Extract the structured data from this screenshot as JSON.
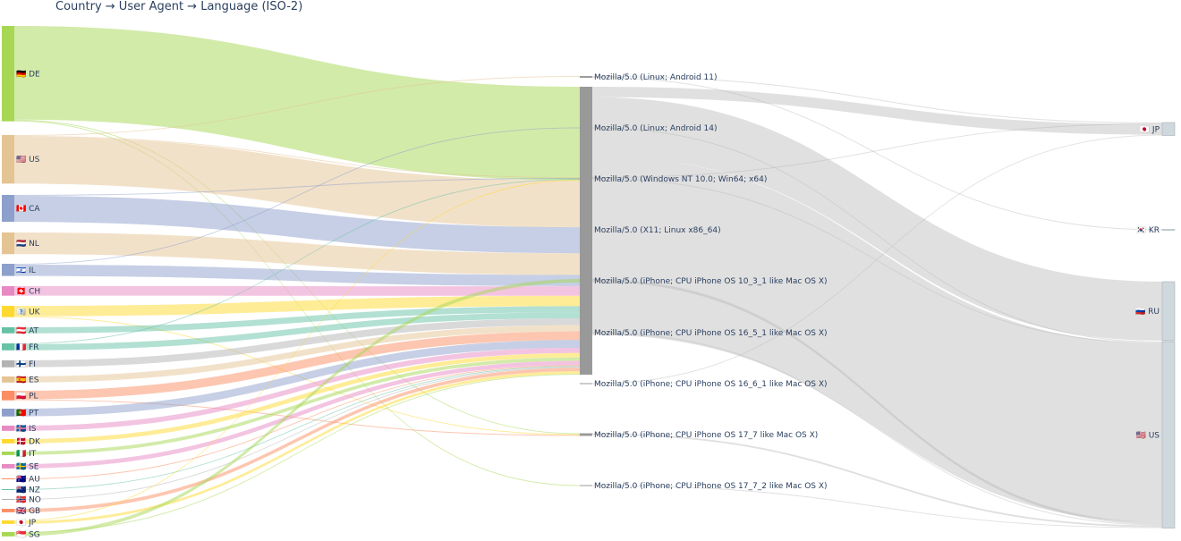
{
  "chart_data": {
    "type": "sankey",
    "title": "Country → User Agent → Language (ISO-2)",
    "nodes": [
      {
        "label": "🇩🇪 DE",
        "color": "#a6d854"
      },
      {
        "label": "🇺🇸 US",
        "color": "#e5c494"
      },
      {
        "label": "🇨🇦 CA",
        "color": "#8da0cb"
      },
      {
        "label": "🇳🇱 NL",
        "color": "#e5c494"
      },
      {
        "label": "🇮🇱 IL",
        "color": "#8da0cb"
      },
      {
        "label": "🇨🇭 CH",
        "color": "#e78ac3"
      },
      {
        "label": "🇺🇰 UK",
        "color": "#ffd92f"
      },
      {
        "label": "🇦🇹 AT",
        "color": "#66c2a5"
      },
      {
        "label": "🇫🇷 FR",
        "color": "#66c2a5"
      },
      {
        "label": "🇫🇮 FI",
        "color": "#b3b3b3"
      },
      {
        "label": "🇪🇸 ES",
        "color": "#e5c494"
      },
      {
        "label": "🇵🇱 PL",
        "color": "#fc8d62"
      },
      {
        "label": "🇵🇹 PT",
        "color": "#8da0cb"
      },
      {
        "label": "🇮🇸 IS",
        "color": "#e78ac3"
      },
      {
        "label": "🇩🇰 DK",
        "color": "#ffd92f"
      },
      {
        "label": "🇮🇹 IT",
        "color": "#a6d854"
      },
      {
        "label": "🇸🇪 SE",
        "color": "#e78ac3"
      },
      {
        "label": "🇦🇺 AU",
        "color": "#fc8d62"
      },
      {
        "label": "🇳🇿 NZ",
        "color": "#66c2a5"
      },
      {
        "label": "🇳🇴 NO",
        "color": "#b3b3b3"
      },
      {
        "label": "🇬🇧 GB",
        "color": "#fc8d62"
      },
      {
        "label": "🇯🇵 JP",
        "color": "#ffd92f"
      },
      {
        "label": "🇸🇬 SG",
        "color": "#a6d854"
      },
      {
        "label": "Mozilla/5.0 (Linux; Android 11)",
        "color": "#999999"
      },
      {
        "label": "Mozilla/5.0 (Linux; Android 14)",
        "color": "#999999"
      },
      {
        "label": "Mozilla/5.0 (Windows NT 10.0; Win64; x64)",
        "color": "#999999"
      },
      {
        "label": "Mozilla/5.0 (X11; Linux x86_64)",
        "color": "#999999"
      },
      {
        "label": "Mozilla/5.0 (iPhone; CPU iPhone OS 10_3_1 like Mac OS X)",
        "color": "#999999"
      },
      {
        "label": "Mozilla/5.0 (iPhone; CPU iPhone OS 16_5_1 like Mac OS X)",
        "color": "#999999"
      },
      {
        "label": "Mozilla/5.0 (iPhone; CPU iPhone OS 16_6_1 like Mac OS X)",
        "color": "#999999"
      },
      {
        "label": "Mozilla/5.0 (iPhone; CPU iPhone OS 17_7 like Mac OS X)",
        "color": "#999999"
      },
      {
        "label": "Mozilla/5.0 (iPhone; CPU iPhone OS 17_7_2 like Mac OS X)",
        "color": "#999999"
      },
      {
        "label": "🇯🇵 JP",
        "color": "#cfd8dc"
      },
      {
        "label": "🇰🇷 KR",
        "color": "#cfd8dc"
      },
      {
        "label": "🇷🇺 RU",
        "color": "#cfd8dc"
      },
      {
        "label": "🇺🇸 US",
        "color": "#cfd8dc"
      }
    ],
    "links": [
      {
        "source": 0,
        "target": 26,
        "value": 108
      },
      {
        "source": 0,
        "target": 30,
        "value": 1
      },
      {
        "source": 0,
        "target": 31,
        "value": 1
      },
      {
        "source": 1,
        "target": 23,
        "value": 1
      },
      {
        "source": 1,
        "target": 25,
        "value": 1
      },
      {
        "source": 1,
        "target": 26,
        "value": 54
      },
      {
        "source": 2,
        "target": 25,
        "value": 1
      },
      {
        "source": 2,
        "target": 26,
        "value": 30
      },
      {
        "source": 3,
        "target": 26,
        "value": 25
      },
      {
        "source": 4,
        "target": 24,
        "value": 1
      },
      {
        "source": 4,
        "target": 26,
        "value": 13
      },
      {
        "source": 5,
        "target": 26,
        "value": 11
      },
      {
        "source": 6,
        "target": 26,
        "value": 12
      },
      {
        "source": 6,
        "target": 30,
        "value": 1
      },
      {
        "source": 7,
        "target": 26,
        "value": 7
      },
      {
        "source": 8,
        "target": 25,
        "value": 1
      },
      {
        "source": 8,
        "target": 26,
        "value": 7
      },
      {
        "source": 9,
        "target": 26,
        "value": 8
      },
      {
        "source": 10,
        "target": 26,
        "value": 7
      },
      {
        "source": 11,
        "target": 26,
        "value": 10
      },
      {
        "source": 11,
        "target": 30,
        "value": 1
      },
      {
        "source": 12,
        "target": 26,
        "value": 9
      },
      {
        "source": 13,
        "target": 26,
        "value": 6
      },
      {
        "source": 14,
        "target": 26,
        "value": 5
      },
      {
        "source": 15,
        "target": 26,
        "value": 4
      },
      {
        "source": 16,
        "target": 26,
        "value": 5
      },
      {
        "source": 17,
        "target": 26,
        "value": 1
      },
      {
        "source": 18,
        "target": 26,
        "value": 1
      },
      {
        "source": 19,
        "target": 26,
        "value": 1
      },
      {
        "source": 20,
        "target": 26,
        "value": 4
      },
      {
        "source": 21,
        "target": 25,
        "value": 1
      },
      {
        "source": 21,
        "target": 26,
        "value": 3
      },
      {
        "source": 22,
        "target": 27,
        "value": 4
      },
      {
        "source": 22,
        "target": 26,
        "value": 1
      },
      {
        "source": 23,
        "target": 33,
        "value": 1
      },
      {
        "source": 23,
        "target": 32,
        "value": 1
      },
      {
        "source": 24,
        "target": 35,
        "value": 1
      },
      {
        "source": 25,
        "target": 32,
        "value": 1
      },
      {
        "source": 25,
        "target": 35,
        "value": 1
      },
      {
        "source": 26,
        "target": 32,
        "value": 12
      },
      {
        "source": 26,
        "target": 34,
        "value": 68
      },
      {
        "source": 26,
        "target": 35,
        "value": 206
      },
      {
        "source": 27,
        "target": 35,
        "value": 3
      },
      {
        "source": 28,
        "target": 35,
        "value": 1
      },
      {
        "source": 29,
        "target": 32,
        "value": 1
      },
      {
        "source": 30,
        "target": 35,
        "value": 2
      },
      {
        "source": 31,
        "target": 35,
        "value": 1
      }
    ]
  }
}
